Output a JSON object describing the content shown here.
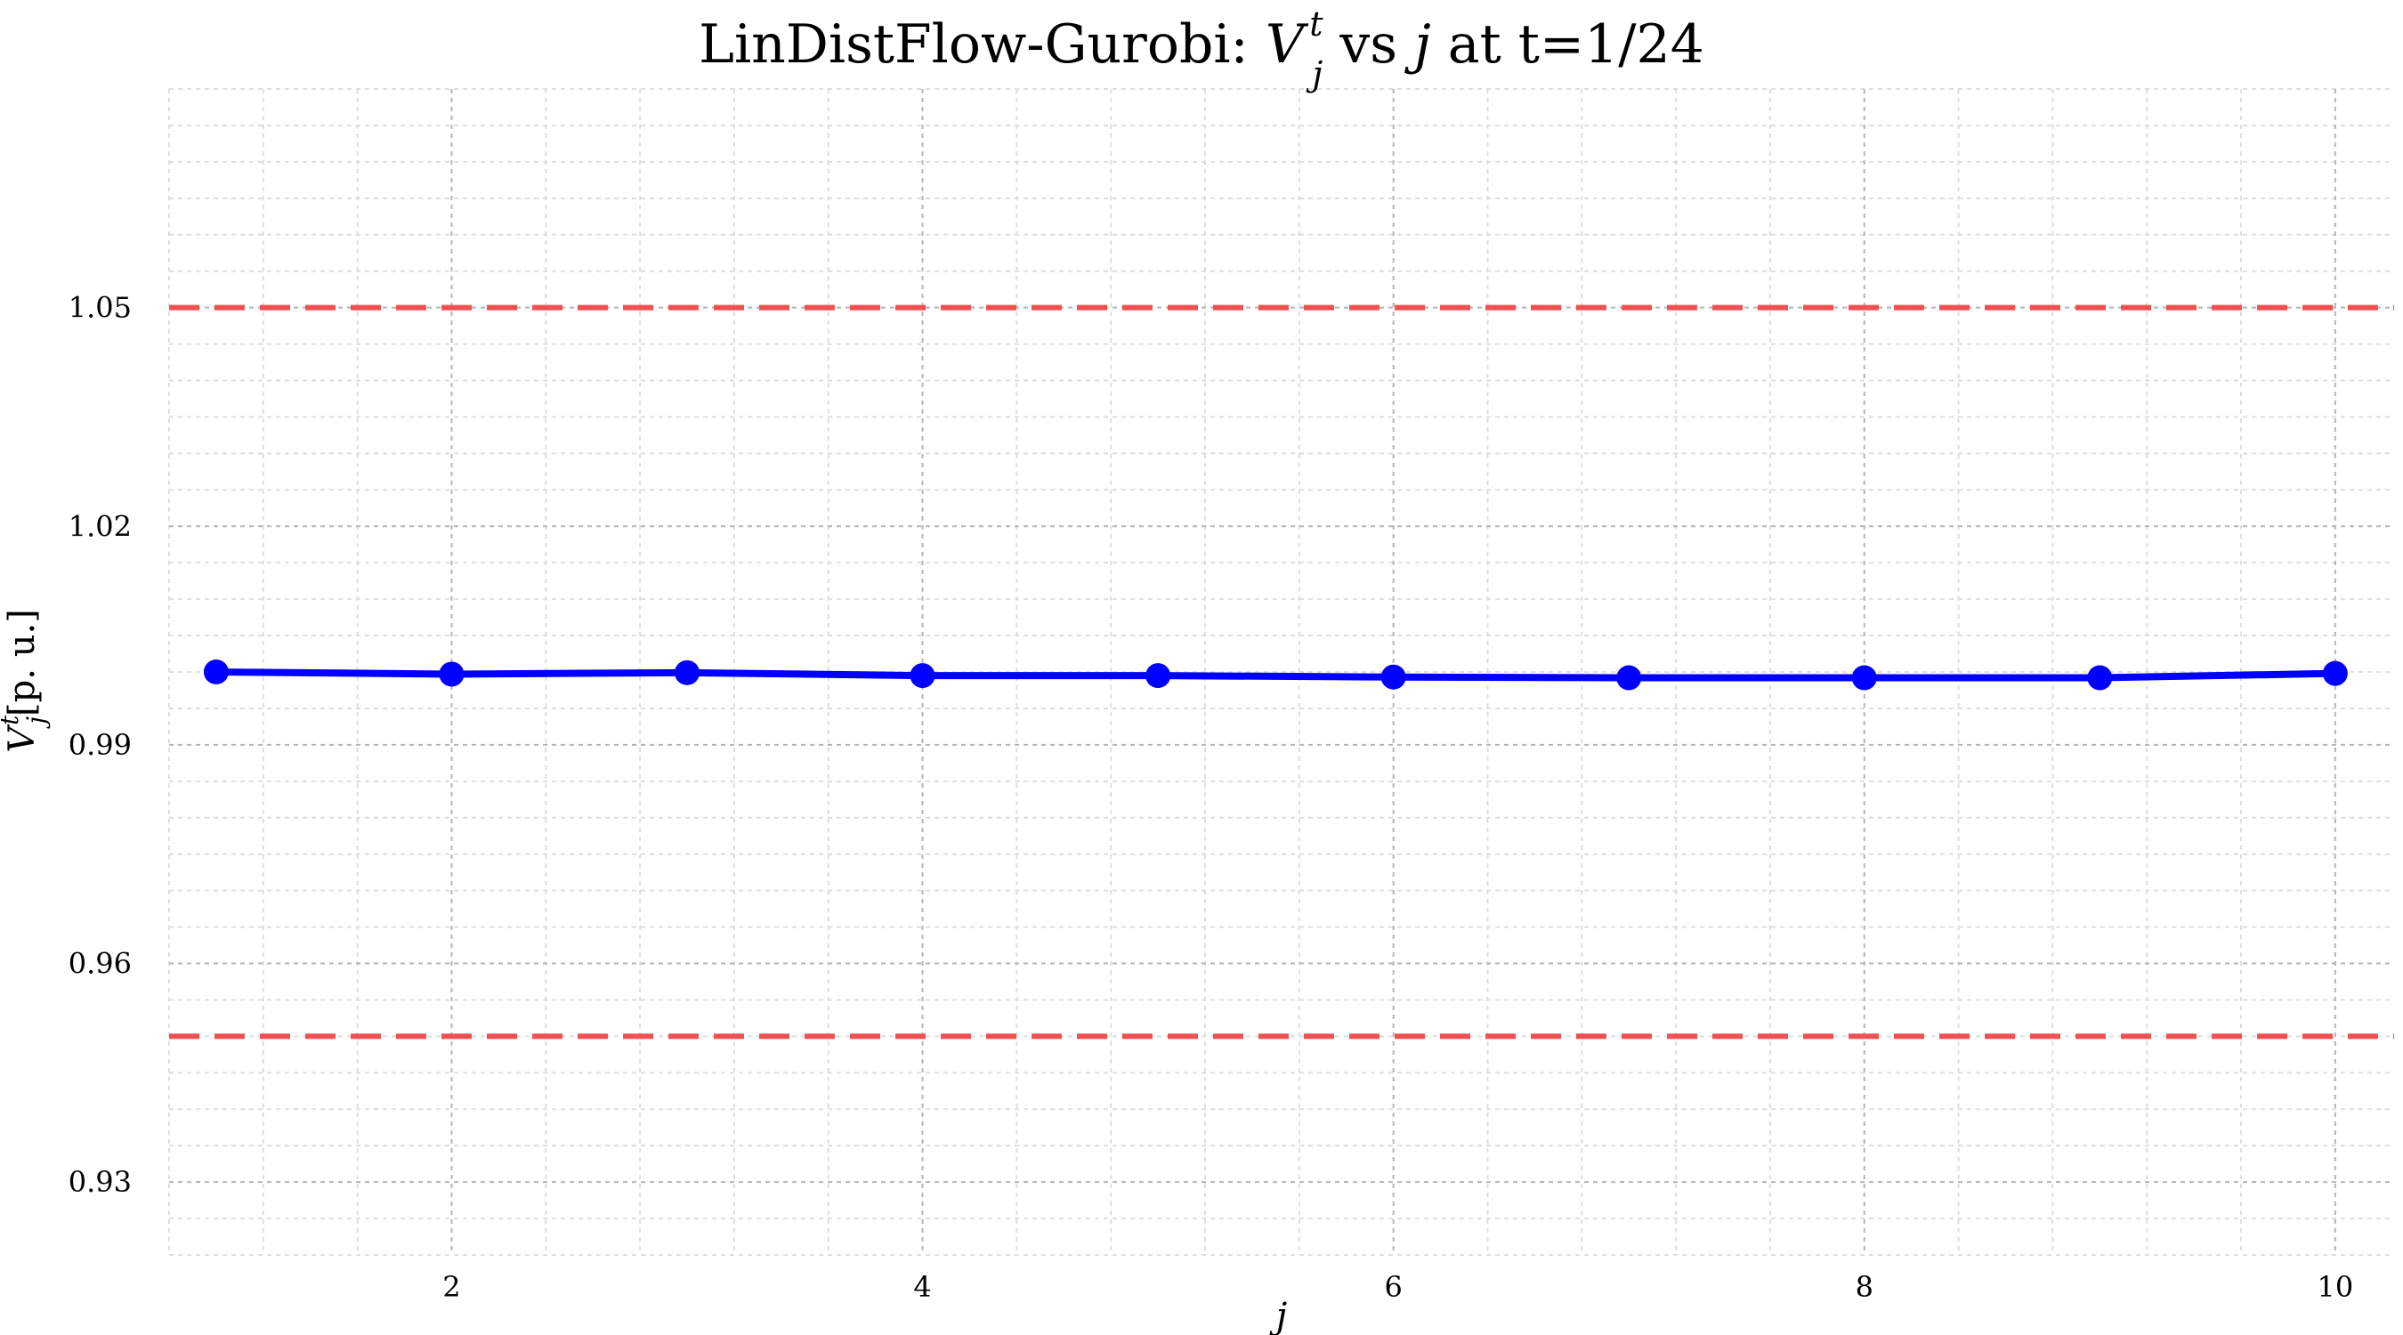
{
  "chart_data": {
    "type": "line",
    "title_parts": {
      "prefix": "LinDistFlow-Gurobi: ",
      "symbol": "V",
      "sup": "t",
      "sub": "j",
      "middle": " vs ",
      "var": "j",
      "suffix": " at t=1/24"
    },
    "xlabel": "j",
    "ylabel_parts": {
      "symbol": "V",
      "sup": "t",
      "sub": "j",
      "unit": "[p. u.]"
    },
    "xlim": [
      0.8,
      10.25
    ],
    "ylim": [
      0.92,
      1.08
    ],
    "x_ticks": [
      2,
      4,
      6,
      8,
      10
    ],
    "y_ticks": [
      "0.93",
      "0.96",
      "0.99",
      "1.02",
      "1.05"
    ],
    "series": [
      {
        "x": [
          1,
          2,
          3,
          4,
          5,
          6,
          7,
          8,
          9,
          10
        ],
        "values": [
          1.0,
          0.9997,
          0.9999,
          0.9995,
          0.9995,
          0.9993,
          0.9992,
          0.9992,
          0.9992,
          0.9998
        ],
        "color": "#0000ff"
      }
    ],
    "reference_lines": [
      {
        "y": 1.05,
        "color": "#f05050",
        "style": "dashed"
      },
      {
        "y": 0.95,
        "color": "#f05050",
        "style": "dashed"
      }
    ],
    "grid": true,
    "minor_grid": true
  }
}
